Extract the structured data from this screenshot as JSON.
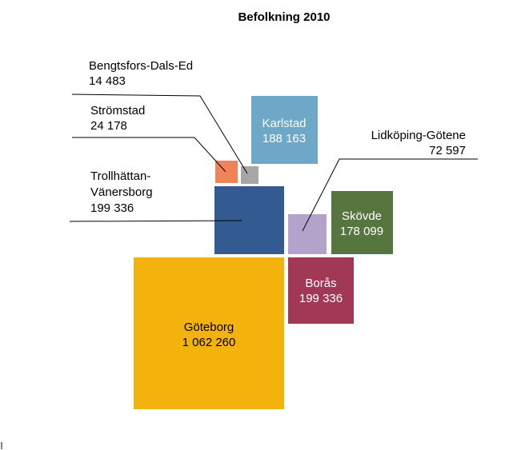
{
  "chart_data": {
    "type": "bubble-squares",
    "title": "Befolkning 2010",
    "series": [
      {
        "name": "Göteborg",
        "value_label": "1 062 260",
        "value": 1062260,
        "color": "#F4B20C",
        "text_color": "#000000"
      },
      {
        "name": "Trollhättan-Vänersborg",
        "name_lines": [
          "Trollhättan-",
          "Vänersborg"
        ],
        "value_label": "199 336",
        "value": 199336,
        "color": "#335B92",
        "text_color": "#000000"
      },
      {
        "name": "Borås",
        "value_label": "199 336",
        "value": 199336,
        "color": "#A03856",
        "text_color": "#FFFFFF"
      },
      {
        "name": "Karlstad",
        "value_label": "188 163",
        "value": 188163,
        "color": "#6DA8C8",
        "text_color": "#FFFFFF"
      },
      {
        "name": "Skövde",
        "value_label": "178 099",
        "value": 178099,
        "color": "#56753F",
        "text_color": "#FFFFFF"
      },
      {
        "name": "Lidköping-Götene",
        "value_label": "72 597",
        "value": 72597,
        "color": "#B3A3CB",
        "text_color": "#000000"
      },
      {
        "name": "Strömstad",
        "value_label": "24 178",
        "value": 24178,
        "color": "#F08358",
        "text_color": "#000000"
      },
      {
        "name": "Bengtsfors-Dals-Ed",
        "value_label": "14 483",
        "value": 14483,
        "color": "#A6A6A6",
        "text_color": "#000000"
      }
    ]
  }
}
